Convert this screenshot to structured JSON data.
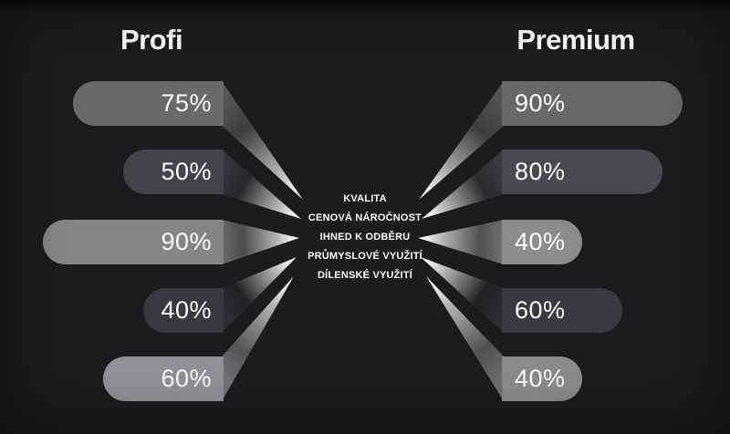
{
  "chart_data": {
    "type": "bar",
    "layout": "mirrored-horizontal-comparison",
    "categories": [
      "KVALITA",
      "CENOVÁ NÁROČNOST",
      "IHNED K ODBĚRU",
      "PRŮMYSLOVÉ VYUŽITÍ",
      "DÍLENSKÉ VYUŽITÍ"
    ],
    "series": [
      {
        "name": "Profi",
        "values": [
          75,
          50,
          90,
          40,
          60
        ]
      },
      {
        "name": "Premium",
        "values": [
          90,
          80,
          40,
          60,
          40
        ]
      }
    ],
    "value_format": "percent",
    "value_range": [
      0,
      100
    ],
    "grid": false,
    "legend_position": "column-titles-top"
  },
  "left_panel": {
    "title": "Profi",
    "bars": [
      {
        "label": "75%",
        "value": 75,
        "color": "#6b696c"
      },
      {
        "label": "50%",
        "value": 50,
        "color": "#454349"
      },
      {
        "label": "90%",
        "value": 90,
        "color": "#858487"
      },
      {
        "label": "40%",
        "value": 40,
        "color": "#39383d"
      },
      {
        "label": "60%",
        "value": 60,
        "color": "#929195"
      }
    ]
  },
  "right_panel": {
    "title": "Premium",
    "bars": [
      {
        "label": "90%",
        "value": 90,
        "color": "#69676a"
      },
      {
        "label": "80%",
        "value": 80,
        "color": "#4b494e"
      },
      {
        "label": "40%",
        "value": 40,
        "color": "#8c8b8e"
      },
      {
        "label": "60%",
        "value": 60,
        "color": "#3a393e"
      },
      {
        "label": "40%",
        "value": 40,
        "color": "#8b8a8d"
      }
    ]
  },
  "center_labels": [
    "KVALITA",
    "CENOVÁ NÁROČNOST",
    "IHNED K ODBĚRU",
    "PRŮMYSLOVÉ VYUŽITÍ",
    "DÍLENSKÉ VYUŽITÍ"
  ],
  "colors": {
    "background": "#1c1b1d",
    "text": "#ffffff",
    "beam_highlight": "#ffffff"
  }
}
